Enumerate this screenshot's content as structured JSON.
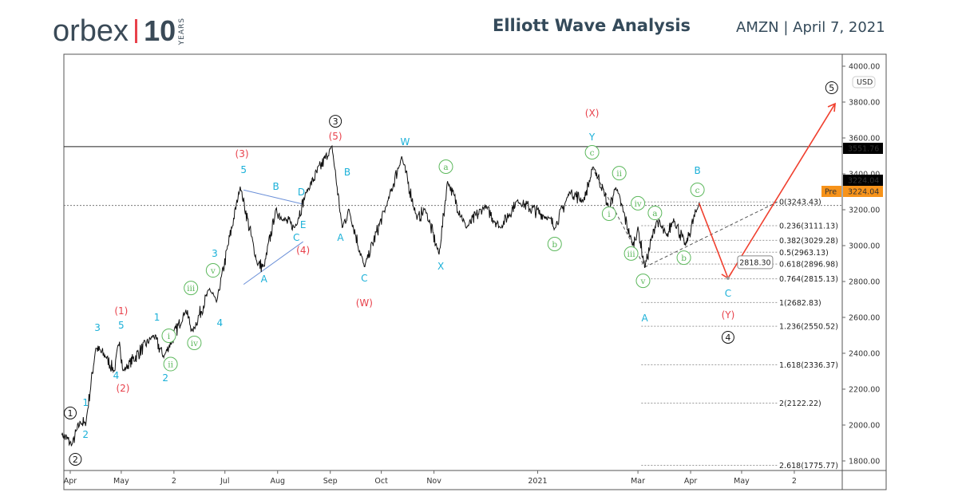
{
  "header": {
    "logo_text": "orbex",
    "logo_ten": "10",
    "logo_years": "YEARS",
    "title": "Elliott Wave Analysis",
    "ticker_date": "AMZN |   April 7, 2021"
  },
  "chart_data": {
    "type": "line",
    "title": "Elliott Wave Analysis",
    "symbol": "AMZN",
    "currency": "USD",
    "ylim": [
      1747,
      4067
    ],
    "xlim": [
      "2020-03-27",
      "2021-07-01"
    ],
    "grid": false,
    "y_ticks": [
      "1800.00",
      "2000.00",
      "2200.00",
      "2400.00",
      "2600.00",
      "2800.00",
      "3000.00",
      "3200.00",
      "3400.00",
      "3600.00",
      "3800.00",
      "4000.00"
    ],
    "x_ticks": [
      {
        "date": "2020-04-01",
        "label": "Apr"
      },
      {
        "date": "2020-05-01",
        "label": "May"
      },
      {
        "date": "2020-06-01",
        "label": "2"
      },
      {
        "date": "2020-07-01",
        "label": "Jul"
      },
      {
        "date": "2020-08-01",
        "label": "Aug"
      },
      {
        "date": "2020-09-01",
        "label": "Sep"
      },
      {
        "date": "2020-10-01",
        "label": "Oct"
      },
      {
        "date": "2020-11-01",
        "label": "Nov"
      },
      {
        "date": "2021-01-01",
        "label": "2021"
      },
      {
        "date": "2021-03-01",
        "label": "Mar"
      },
      {
        "date": "2021-04-01",
        "label": "Apr"
      },
      {
        "date": "2021-05-01",
        "label": "May"
      },
      {
        "date": "2021-06-01",
        "label": "2"
      }
    ],
    "price_pivots": [
      [
        "2020-03-27",
        1950
      ],
      [
        "2020-04-02",
        1890
      ],
      [
        "2020-04-07",
        2020
      ],
      [
        "2020-04-10",
        2000
      ],
      [
        "2020-04-16",
        2430
      ],
      [
        "2020-04-22",
        2380
      ],
      [
        "2020-04-27",
        2300
      ],
      [
        "2020-04-30",
        2470
      ],
      [
        "2020-05-02",
        2300
      ],
      [
        "2020-05-20",
        2500
      ],
      [
        "2020-05-26",
        2380
      ],
      [
        "2020-06-08",
        2640
      ],
      [
        "2020-06-12",
        2520
      ],
      [
        "2020-06-22",
        2760
      ],
      [
        "2020-06-26",
        2680
      ],
      [
        "2020-07-10",
        3330
      ],
      [
        "2020-07-20",
        2900
      ],
      [
        "2020-07-24",
        2880
      ],
      [
        "2020-07-31",
        3200
      ],
      [
        "2020-08-04",
        3150
      ],
      [
        "2020-08-11",
        3100
      ],
      [
        "2020-08-18",
        3300
      ],
      [
        "2020-09-02",
        3552
      ],
      [
        "2020-09-08",
        3100
      ],
      [
        "2020-09-12",
        3200
      ],
      [
        "2020-09-21",
        2880
      ],
      [
        "2020-10-05",
        3250
      ],
      [
        "2020-10-13",
        3496
      ],
      [
        "2020-10-22",
        3150
      ],
      [
        "2020-10-27",
        3200
      ],
      [
        "2020-11-04",
        2950
      ],
      [
        "2020-11-09",
        3360
      ],
      [
        "2020-11-20",
        3100
      ],
      [
        "2020-12-01",
        3220
      ],
      [
        "2020-12-10",
        3100
      ],
      [
        "2020-12-20",
        3250
      ],
      [
        "2021-01-08",
        3150
      ],
      [
        "2021-01-11",
        3100
      ],
      [
        "2021-01-20",
        3300
      ],
      [
        "2021-01-28",
        3250
      ],
      [
        "2021-02-03",
        3440
      ],
      [
        "2021-02-09",
        3300
      ],
      [
        "2021-02-12",
        3200
      ],
      [
        "2021-02-16",
        3330
      ],
      [
        "2021-02-26",
        3000
      ],
      [
        "2021-03-01",
        3100
      ],
      [
        "2021-03-05",
        2880
      ],
      [
        "2021-03-12",
        3140
      ],
      [
        "2021-03-18",
        3050
      ],
      [
        "2021-03-22",
        3150
      ],
      [
        "2021-03-29",
        3000
      ],
      [
        "2021-04-06",
        3240
      ],
      [
        "2021-04-07",
        3224
      ]
    ],
    "horizontal_lines": [
      {
        "price": 3551.76,
        "style": "solid",
        "label": "3551.76"
      },
      {
        "price": 3224.04,
        "style": "dotted",
        "label": "3224.04"
      }
    ],
    "price_badges": [
      {
        "tag": "Pre",
        "value": "3224.04",
        "color": "#f7931a"
      },
      {
        "value": "3224.04",
        "color": "#000000"
      },
      {
        "value": "3551.76",
        "color": "#000000"
      }
    ],
    "fib_levels": [
      {
        "label": "0(3243.43)",
        "price": 3243.43
      },
      {
        "label": "0.236(3111.13)",
        "price": 3111.13
      },
      {
        "label": "0.382(3029.28)",
        "price": 3029.28
      },
      {
        "label": "0.5(2963.13)",
        "price": 2963.13
      },
      {
        "label": "0.618(2896.98)",
        "price": 2896.98
      },
      {
        "label": "0.764(2815.13)",
        "price": 2815.13
      },
      {
        "label": "1(2682.83)",
        "price": 2682.83
      },
      {
        "label": "1.236(2550.52)",
        "price": 2550.52
      },
      {
        "label": "1.618(2336.37)",
        "price": 2336.37
      },
      {
        "label": "2(2122.22)",
        "price": 2122.22
      },
      {
        "label": "2.618(1775.77)",
        "price": 1775.77
      }
    ],
    "projection": {
      "color": "#f0402f",
      "points": [
        [
          "2021-04-06",
          3236
        ],
        [
          "2021-04-23",
          2818.3
        ],
        [
          "2021-06-25",
          3791
        ]
      ],
      "callout": "2818.30"
    },
    "triangle_lines": [
      [
        [
          "2020-07-12",
          3310
        ],
        [
          "2020-08-16",
          3231
        ]
      ],
      [
        [
          "2020-07-12",
          2784
        ],
        [
          "2020-08-16",
          3022
        ]
      ]
    ],
    "dashed_lines": [
      [
        [
          "2021-02-02",
          3436
        ],
        [
          "2021-03-05",
          2880
        ]
      ],
      [
        [
          "2021-03-05",
          2880
        ],
        [
          "2021-05-22",
          3243
        ]
      ]
    ],
    "colors": {
      "primary": "#000000",
      "intermediate": "#e8414b",
      "minor": "#1ab0d8",
      "minute": "#5cb85c",
      "triangle": "#6a8fd8"
    },
    "wave_labels": [
      {
        "t": "1",
        "style": "primary",
        "date": "2020-04-01",
        "price": 2067
      },
      {
        "t": "2",
        "style": "primary",
        "date": "2020-04-04",
        "price": 1809
      },
      {
        "t": "3",
        "style": "primary",
        "date": "2020-09-04",
        "price": 3693
      },
      {
        "t": "4",
        "style": "primary",
        "date": "2021-04-23",
        "price": 2489
      },
      {
        "t": "5",
        "style": "primary",
        "date": "2021-06-23",
        "price": 3880
      },
      {
        "t": "(1)",
        "style": "intermediate",
        "date": "2020-05-01",
        "price": 2636
      },
      {
        "t": "(2)",
        "style": "intermediate",
        "date": "2020-05-02",
        "price": 2204
      },
      {
        "t": "(3)",
        "style": "intermediate",
        "date": "2020-07-11",
        "price": 3511
      },
      {
        "t": "(4)",
        "style": "intermediate",
        "date": "2020-08-16",
        "price": 2973
      },
      {
        "t": "(5)",
        "style": "intermediate",
        "date": "2020-09-04",
        "price": 3609
      },
      {
        "t": "(W)",
        "style": "intermediate",
        "date": "2020-09-21",
        "price": 2680
      },
      {
        "t": "(X)",
        "style": "intermediate",
        "date": "2021-02-02",
        "price": 3738
      },
      {
        "t": "(Y)",
        "style": "intermediate",
        "date": "2021-04-23",
        "price": 2613
      },
      {
        "t": "1",
        "style": "minor",
        "date": "2020-04-10",
        "price": 2124
      },
      {
        "t": "2",
        "style": "minor",
        "date": "2020-04-10",
        "price": 1947
      },
      {
        "t": "3",
        "style": "minor",
        "date": "2020-04-17",
        "price": 2542
      },
      {
        "t": "4",
        "style": "minor",
        "date": "2020-04-28",
        "price": 2244
      },
      {
        "t": "5",
        "style": "minor",
        "date": "2020-05-01",
        "price": 2556
      },
      {
        "t": "1",
        "style": "minor",
        "date": "2020-05-22",
        "price": 2600
      },
      {
        "t": "2",
        "style": "minor",
        "date": "2020-05-27",
        "price": 2262
      },
      {
        "t": "3",
        "style": "minor",
        "date": "2020-06-25",
        "price": 2956
      },
      {
        "t": "4",
        "style": "minor",
        "date": "2020-06-28",
        "price": 2569
      },
      {
        "t": "5",
        "style": "minor",
        "date": "2020-07-12",
        "price": 3422
      },
      {
        "t": "A",
        "style": "minor",
        "date": "2020-07-24",
        "price": 2813
      },
      {
        "t": "B",
        "style": "minor",
        "date": "2020-07-31",
        "price": 3329
      },
      {
        "t": "C",
        "style": "minor",
        "date": "2020-08-12",
        "price": 3018
      },
      {
        "t": "D",
        "style": "minor",
        "date": "2020-08-15",
        "price": 3298
      },
      {
        "t": "E",
        "style": "minor",
        "date": "2020-08-16",
        "price": 3049
      },
      {
        "t": "A",
        "style": "minor",
        "date": "2020-09-07",
        "price": 3044
      },
      {
        "t": "B",
        "style": "minor",
        "date": "2020-09-11",
        "price": 3409
      },
      {
        "t": "C",
        "style": "minor",
        "date": "2020-09-21",
        "price": 2818
      },
      {
        "t": "W",
        "style": "minor",
        "date": "2020-10-15",
        "price": 3578
      },
      {
        "t": "X",
        "style": "minor",
        "date": "2020-11-05",
        "price": 2884
      },
      {
        "t": "Y",
        "style": "minor",
        "date": "2021-02-02",
        "price": 3604
      },
      {
        "t": "A",
        "style": "minor",
        "date": "2021-03-05",
        "price": 2596
      },
      {
        "t": "B",
        "style": "minor",
        "date": "2021-04-05",
        "price": 3418
      },
      {
        "t": "C",
        "style": "minor",
        "date": "2021-04-23",
        "price": 2733
      },
      {
        "t": "i",
        "style": "minute",
        "date": "2020-05-29",
        "price": 2498
      },
      {
        "t": "ii",
        "style": "minute",
        "date": "2020-05-30",
        "price": 2320
      },
      {
        "t": "iii",
        "style": "minute",
        "date": "2020-06-11",
        "price": 2764
      },
      {
        "t": "iv",
        "style": "minute",
        "date": "2020-06-13",
        "price": 2458
      },
      {
        "t": "v",
        "style": "minute",
        "date": "2020-06-24",
        "price": 2862
      },
      {
        "t": "a",
        "style": "minute",
        "date": "2020-11-08",
        "price": 3440
      },
      {
        "t": "b",
        "style": "minute",
        "date": "2021-01-11",
        "price": 3009
      },
      {
        "t": "c",
        "style": "minute",
        "date": "2021-02-02",
        "price": 3520
      },
      {
        "t": "i",
        "style": "minute",
        "date": "2021-02-12",
        "price": 3178
      },
      {
        "t": "ii",
        "style": "minute",
        "date": "2021-02-18",
        "price": 3404
      },
      {
        "t": "iii",
        "style": "minute",
        "date": "2021-02-25",
        "price": 2956
      },
      {
        "t": "iv",
        "style": "minute",
        "date": "2021-03-01",
        "price": 3236
      },
      {
        "t": "v",
        "style": "minute",
        "date": "2021-03-04",
        "price": 2804
      },
      {
        "t": "a",
        "style": "minute",
        "date": "2021-03-11",
        "price": 3182
      },
      {
        "t": "b",
        "style": "minute",
        "date": "2021-03-28",
        "price": 2933
      },
      {
        "t": "c",
        "style": "minute",
        "date": "2021-04-05",
        "price": 3311
      }
    ]
  }
}
